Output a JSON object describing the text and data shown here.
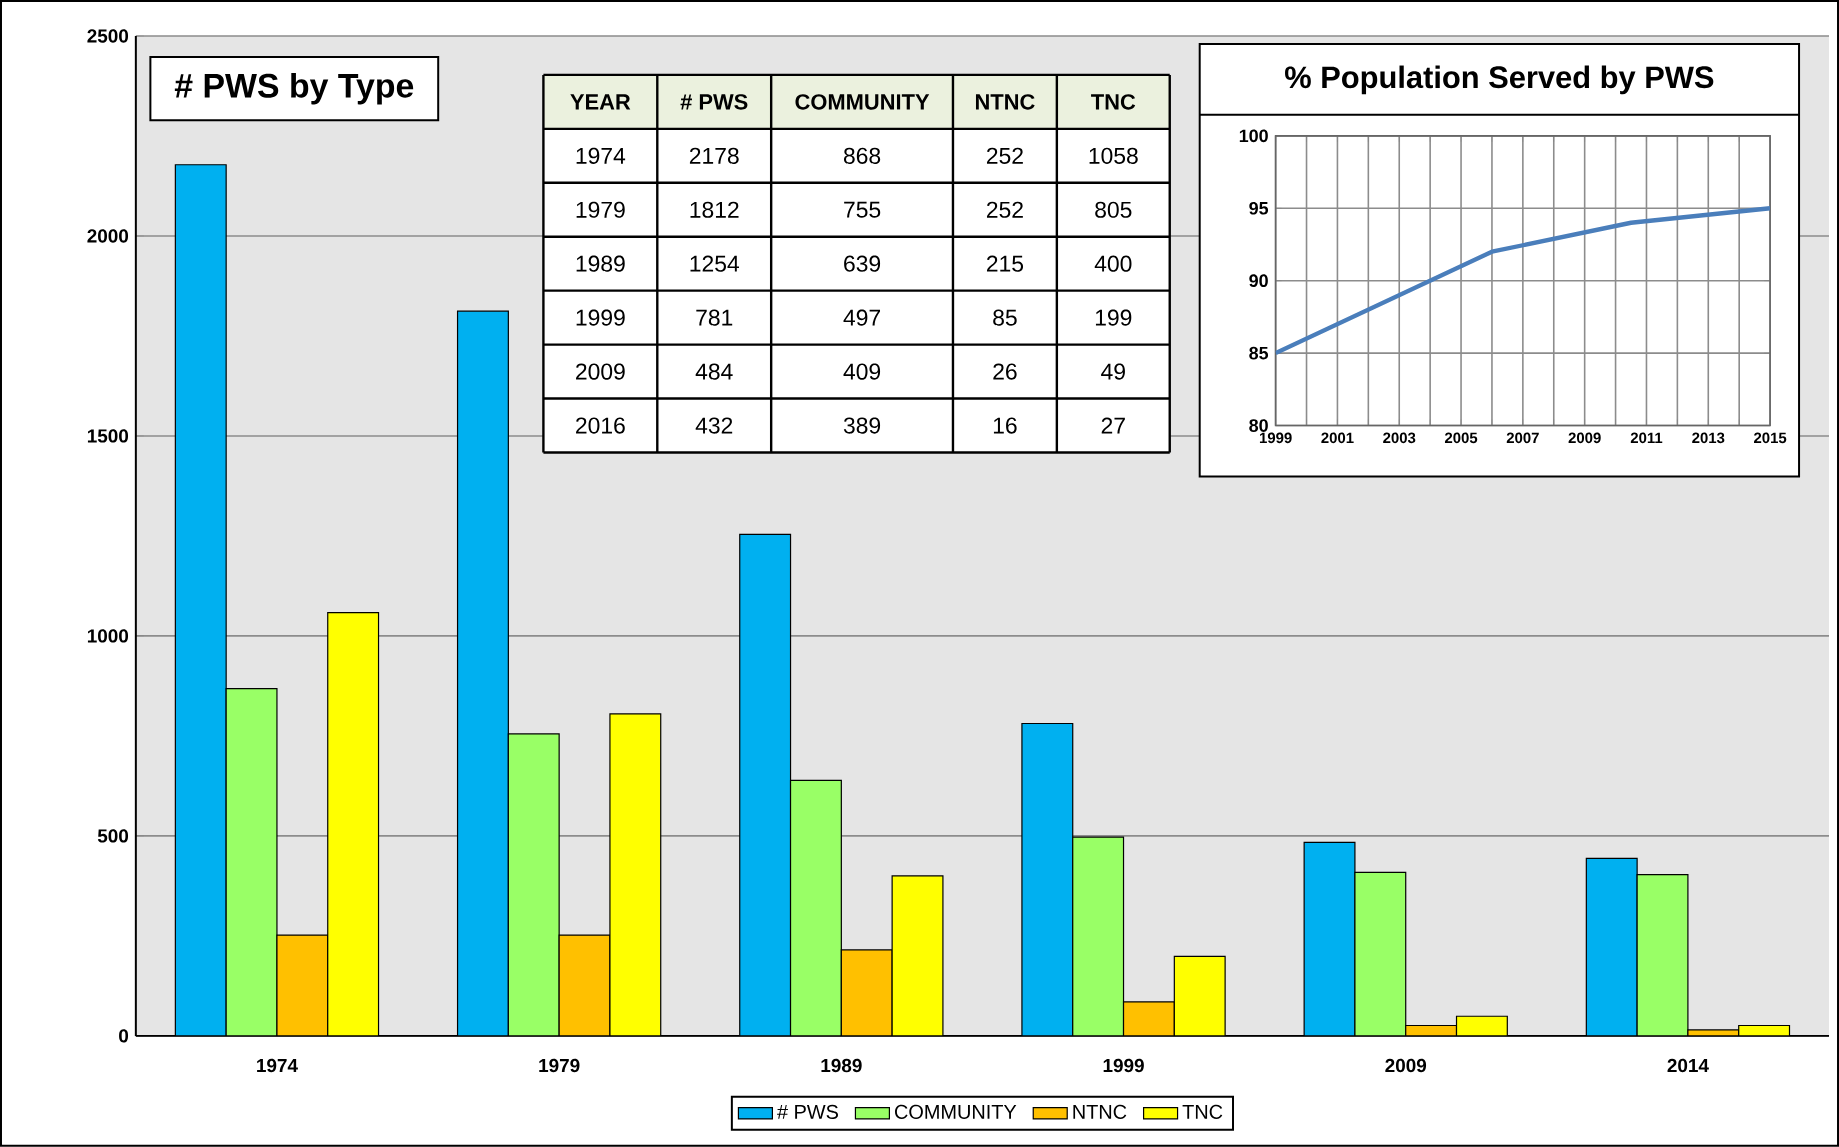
{
  "chart_data": [
    {
      "type": "bar",
      "title": "# PWS by Type",
      "categories": [
        "1974",
        "1979",
        "1989",
        "1999",
        "2009",
        "2014"
      ],
      "series": [
        {
          "name": "# PWS",
          "color": "#00b0f0",
          "values": [
            2178,
            1812,
            1254,
            781,
            484,
            444
          ]
        },
        {
          "name": "COMMUNITY",
          "color": "#99ff66",
          "values": [
            868,
            755,
            639,
            497,
            409,
            403
          ]
        },
        {
          "name": "NTNC",
          "color": "#ffc000",
          "values": [
            252,
            252,
            215,
            85,
            26,
            15
          ]
        },
        {
          "name": "TNC",
          "color": "#ffff00",
          "values": [
            1058,
            805,
            400,
            199,
            49,
            26
          ]
        }
      ],
      "ylim": [
        0,
        2500
      ],
      "yticks": [
        0,
        500,
        1000,
        1500,
        2000,
        2500
      ],
      "grid": "y",
      "legend": "bottom"
    },
    {
      "type": "heatmap",
      "ylabel": "YEAR",
      "categories": [
        "# PWS",
        "COMMUNITY",
        "NTNC",
        "TNC"
      ],
      "y_categories": [
        "1974",
        "1979",
        "1989",
        "1999",
        "2009",
        "2016"
      ],
      "cells": [
        [
          2178,
          868,
          252,
          1058
        ],
        [
          1812,
          755,
          252,
          805
        ],
        [
          1254,
          639,
          215,
          400
        ],
        [
          781,
          497,
          85,
          199
        ],
        [
          484,
          409,
          26,
          49
        ],
        [
          432,
          389,
          16,
          27
        ]
      ],
      "data_labels": true
    },
    {
      "type": "line",
      "title": "% Population Served by PWS",
      "x": [
        1999,
        2006,
        2010.5,
        2015
      ],
      "values": [
        85,
        92,
        94,
        95
      ],
      "color": "#4a7ebb",
      "xlim": [
        1999,
        2015
      ],
      "xticks": [
        1999,
        {
          "value": 2000,
          "label": null
        },
        2001,
        {
          "value": 2002,
          "label": null
        },
        2003,
        {
          "value": 2004,
          "label": null
        },
        2005,
        {
          "value": 2006,
          "label": null
        },
        2007,
        {
          "value": 2008,
          "label": null
        },
        2009,
        {
          "value": 2010,
          "label": null
        },
        2011,
        {
          "value": 2012,
          "label": null
        },
        2013,
        {
          "value": 2014,
          "label": null
        },
        2015
      ],
      "ylim": [
        80,
        100
      ],
      "yticks": [
        80,
        85,
        90,
        95,
        100
      ],
      "grid": true,
      "marker": "none",
      "line_style": "solid"
    }
  ]
}
